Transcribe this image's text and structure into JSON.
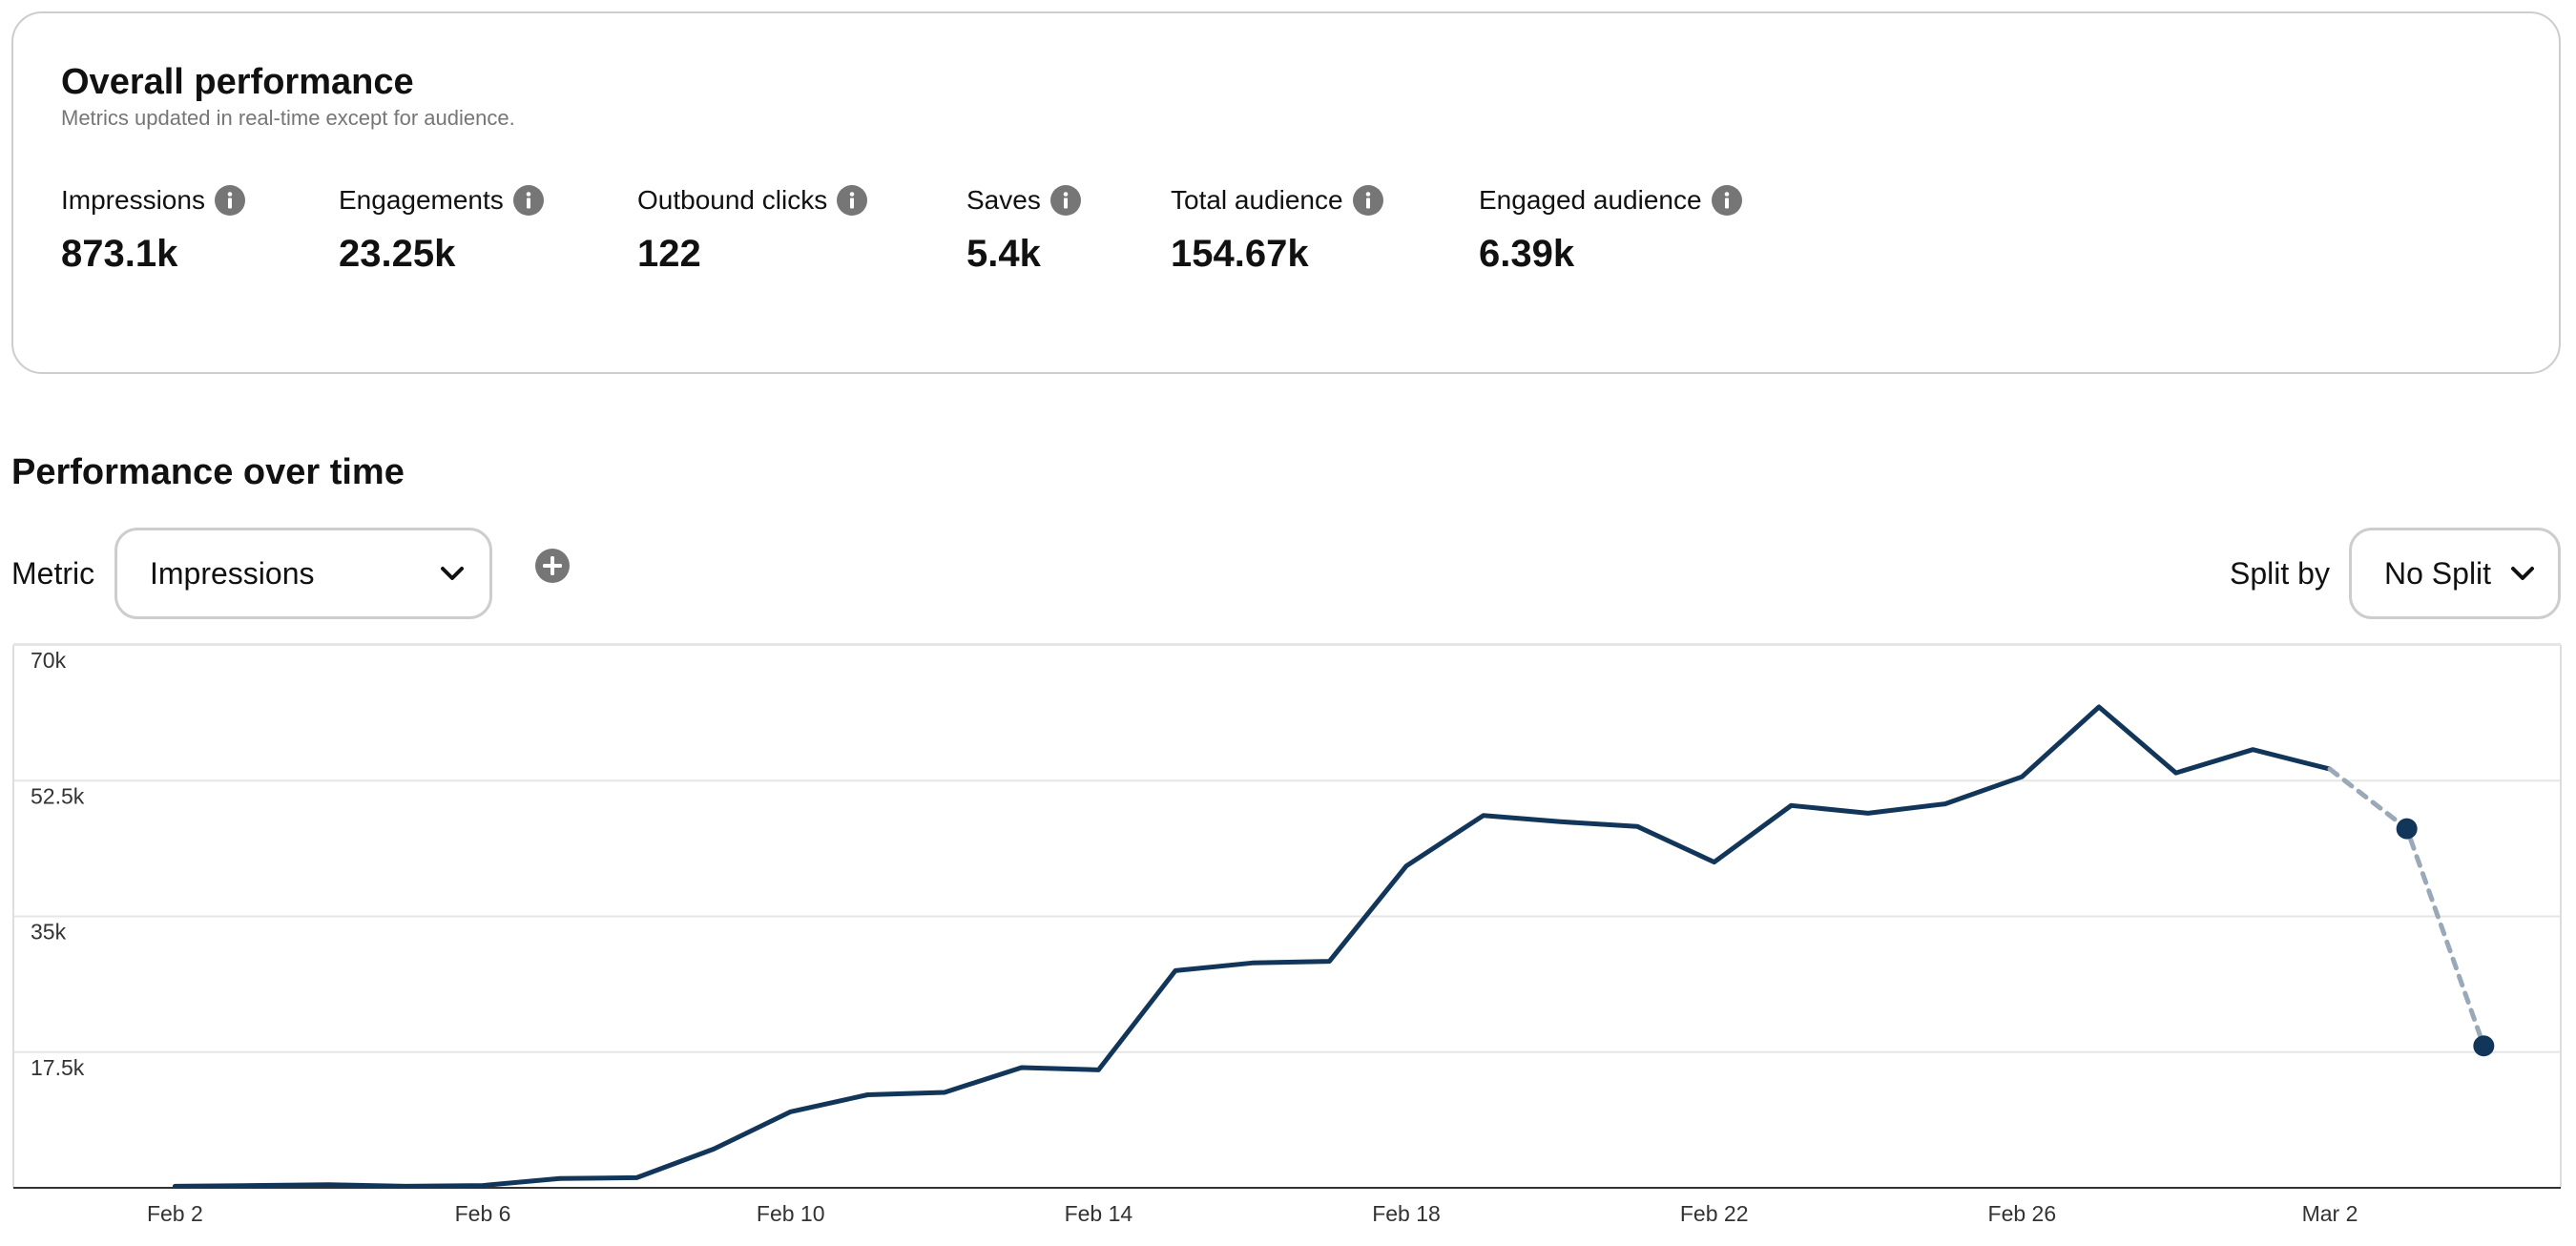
{
  "overall": {
    "title": "Overall performance",
    "subtitle": "Metrics updated in real-time except for audience.",
    "metrics": [
      {
        "label": "Impressions",
        "value": "873.1k"
      },
      {
        "label": "Engagements",
        "value": "23.25k"
      },
      {
        "label": "Outbound clicks",
        "value": "122"
      },
      {
        "label": "Saves",
        "value": "5.4k"
      },
      {
        "label": "Total audience",
        "value": "154.67k"
      },
      {
        "label": "Engaged audience",
        "value": "6.39k"
      }
    ]
  },
  "over_time": {
    "title": "Performance over time",
    "metric_label": "Metric",
    "metric_value": "Impressions",
    "split_label": "Split by",
    "split_value": "No Split"
  },
  "icons": {
    "info": "info-icon",
    "chevron": "chevron-down-icon",
    "add": "add-circle-icon"
  },
  "colors": {
    "line": "#12365a",
    "projected": "#9aa9b8",
    "icon": "#767676"
  },
  "chart_data": {
    "type": "line",
    "y_ticks": [
      "17.5k",
      "35k",
      "52.5k",
      "70k"
    ],
    "x_ticks": [
      {
        "day": 0,
        "label": "Feb 2"
      },
      {
        "day": 4,
        "label": "Feb 6"
      },
      {
        "day": 8,
        "label": "Feb 10"
      },
      {
        "day": 12,
        "label": "Feb 14"
      },
      {
        "day": 16,
        "label": "Feb 18"
      },
      {
        "day": 20,
        "label": "Feb 22"
      },
      {
        "day": 24,
        "label": "Feb 26"
      },
      {
        "day": 28,
        "label": "Mar 2"
      }
    ],
    "ylim": [
      0,
      70000
    ],
    "xlim": [
      -2.1,
      31
    ],
    "grid": true,
    "series": [
      {
        "style": "solid",
        "points": [
          [
            0,
            200
          ],
          [
            1,
            300
          ],
          [
            2,
            400
          ],
          [
            3,
            200
          ],
          [
            4,
            300
          ],
          [
            5,
            1200
          ],
          [
            6,
            1300
          ],
          [
            7,
            5000
          ],
          [
            8,
            9800
          ],
          [
            9,
            12000
          ],
          [
            10,
            12300
          ],
          [
            11,
            15500
          ],
          [
            12,
            15200
          ],
          [
            13,
            28000
          ],
          [
            14,
            29000
          ],
          [
            15,
            29200
          ],
          [
            16,
            41500
          ],
          [
            17,
            48000
          ],
          [
            18,
            47200
          ],
          [
            19,
            46600
          ],
          [
            20,
            42000
          ],
          [
            21,
            49300
          ],
          [
            22,
            48300
          ],
          [
            23,
            49500
          ],
          [
            24,
            53000
          ],
          [
            25,
            62000
          ],
          [
            26,
            53500
          ],
          [
            27,
            56500
          ],
          [
            28,
            54000
          ]
        ]
      },
      {
        "style": "dashed",
        "points": [
          [
            28,
            54000
          ],
          [
            29,
            46300
          ],
          [
            30,
            18300
          ]
        ]
      }
    ],
    "markers": [
      [
        29,
        46300
      ],
      [
        30,
        18300
      ]
    ]
  }
}
